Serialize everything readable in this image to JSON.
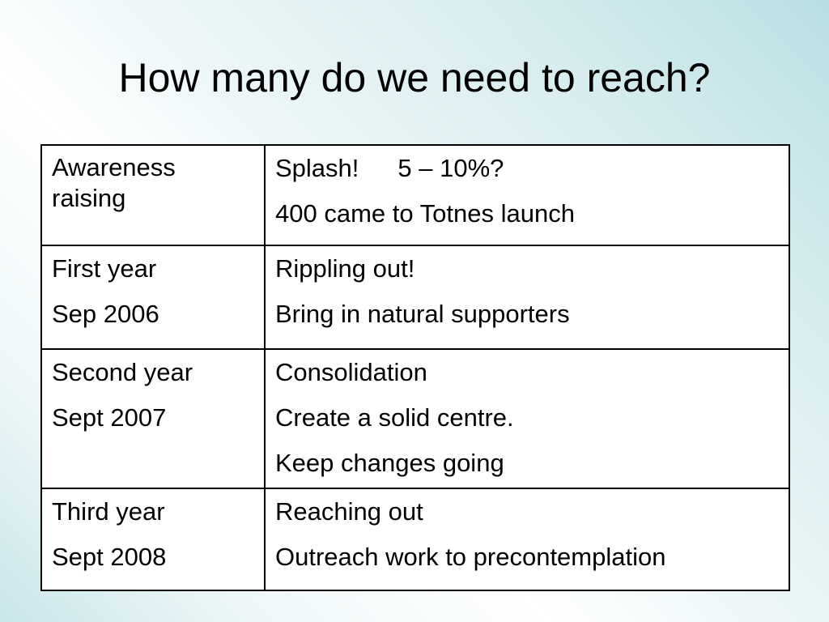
{
  "slide": {
    "title": "How many do we need to reach?"
  },
  "table": {
    "rows": [
      {
        "stage": [
          "Awareness raising"
        ],
        "details": [
          "Splash!",
          "5 – 10%?",
          "400 came to Totnes launch"
        ]
      },
      {
        "stage": [
          "First year",
          "Sep 2006"
        ],
        "details": [
          "Rippling out!",
          "Bring in natural supporters"
        ]
      },
      {
        "stage": [
          "Second year",
          "Sept 2007"
        ],
        "details": [
          "Consolidation",
          "Create a solid centre.",
          "Keep changes going"
        ]
      },
      {
        "stage": [
          "Third year",
          "Sept 2008"
        ],
        "details": [
          "Reaching out",
          "Outreach work to precontemplation"
        ]
      }
    ]
  }
}
